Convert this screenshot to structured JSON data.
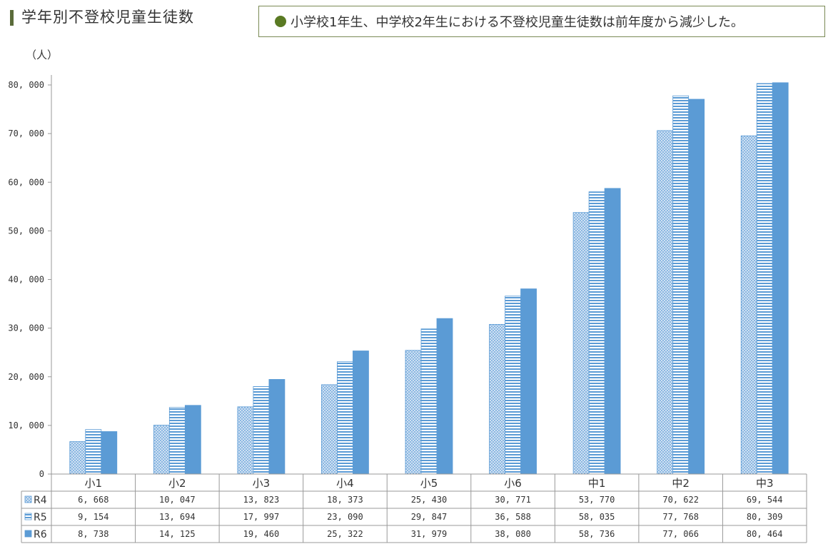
{
  "header": {
    "title": "学年別不登校児童生徒数",
    "note": "小学校1年生、中学校2年生における不登校児童生徒数は前年度から減少した。"
  },
  "chart_data": {
    "type": "bar",
    "unit_label": "（人）",
    "categories": [
      "小1",
      "小2",
      "小3",
      "小4",
      "小5",
      "小6",
      "中1",
      "中2",
      "中3"
    ],
    "ylim": [
      0,
      80000
    ],
    "yticks": [
      0,
      10000,
      20000,
      30000,
      40000,
      50000,
      60000,
      70000,
      80000
    ],
    "ytick_labels": [
      "0",
      "10, 000",
      "20, 000",
      "30, 000",
      "40, 000",
      "50, 000",
      "60, 000",
      "70, 000",
      "80, 000"
    ],
    "series": [
      {
        "name": "R4",
        "values": [
          6668,
          10047,
          13823,
          18373,
          25430,
          30771,
          53770,
          70622,
          69544
        ],
        "labels": [
          "6, 668",
          "10, 047",
          "13, 823",
          "18, 373",
          "25, 430",
          "30, 771",
          "53, 770",
          "70, 622",
          "69, 544"
        ],
        "pattern": "dots",
        "color": "#5b9bd5"
      },
      {
        "name": "R5",
        "values": [
          9154,
          13694,
          17997,
          23090,
          29847,
          36588,
          58035,
          77768,
          80309
        ],
        "labels": [
          "9, 154",
          "13, 694",
          "17, 997",
          "23, 090",
          "29, 847",
          "36, 588",
          "58, 035",
          "77, 768",
          "80, 309"
        ],
        "pattern": "hlines",
        "color": "#5b9bd5"
      },
      {
        "name": "R6",
        "values": [
          8738,
          14125,
          19460,
          25322,
          31979,
          38080,
          58736,
          77066,
          80464
        ],
        "labels": [
          "8, 738",
          "14, 125",
          "19, 460",
          "25, 322",
          "31, 979",
          "38, 080",
          "58, 736",
          "77, 066",
          "80, 464"
        ],
        "pattern": "solid",
        "color": "#5b9bd5"
      }
    ],
    "grid": false,
    "legend": "data-table-left"
  }
}
